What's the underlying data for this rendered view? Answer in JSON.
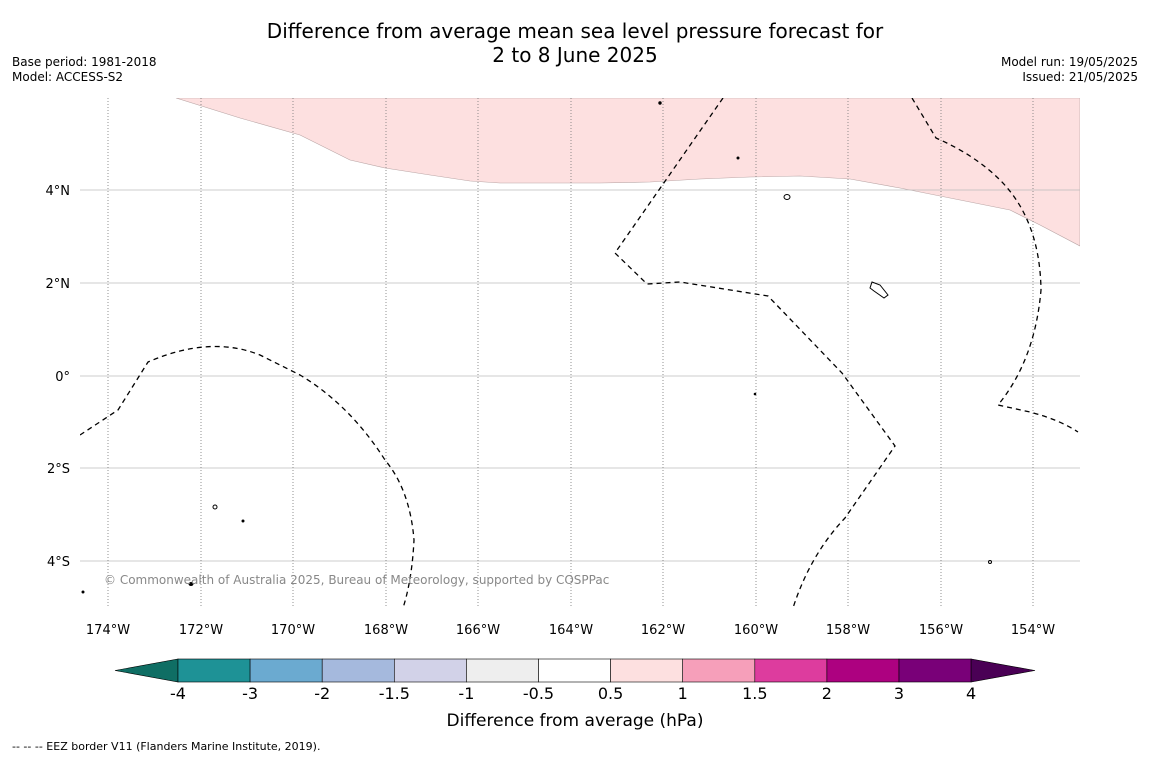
{
  "title_line1": "Difference from average mean sea level pressure forecast for",
  "title_line2": "2 to 8 June 2025",
  "meta_left": {
    "base_period": "Base period: 1981-2018",
    "model": "Model: ACCESS-S2"
  },
  "meta_right": {
    "model_run": "Model run: 19/05/2025",
    "issued": "Issued: 21/05/2025"
  },
  "map": {
    "lon_ticks": [
      "174°W",
      "172°W",
      "170°W",
      "168°W",
      "166°W",
      "164°W",
      "162°W",
      "160°W",
      "158°W",
      "156°W",
      "154°W"
    ],
    "lat_ticks": [
      "4°N",
      "2°N",
      "0°",
      "2°S",
      "4°S"
    ],
    "copyright": "© Commonwealth of Australia 2025, Bureau of Meteorology, supported by COSPPac",
    "positive_anomaly_color": "#fde0e0",
    "eez_line_style": "dashed"
  },
  "colorbar": {
    "colors": [
      "#0f6e64",
      "#1e9296",
      "#6baad0",
      "#a5b9dd",
      "#d2d2e8",
      "#eeeeee",
      "#ffffff",
      "#fde0e0",
      "#f69fba",
      "#dd3c9e",
      "#ad0180",
      "#790078",
      "#4a0055"
    ],
    "ticks": [
      "-4",
      "-3",
      "-2",
      "-1.5",
      "-1",
      "-0.5",
      "0.5",
      "1",
      "1.5",
      "2",
      "3",
      "4"
    ],
    "label": "Difference from average (hPa)"
  },
  "footer": "--  --  -- EEZ border V11 (Flanders Marine Institute, 2019)."
}
